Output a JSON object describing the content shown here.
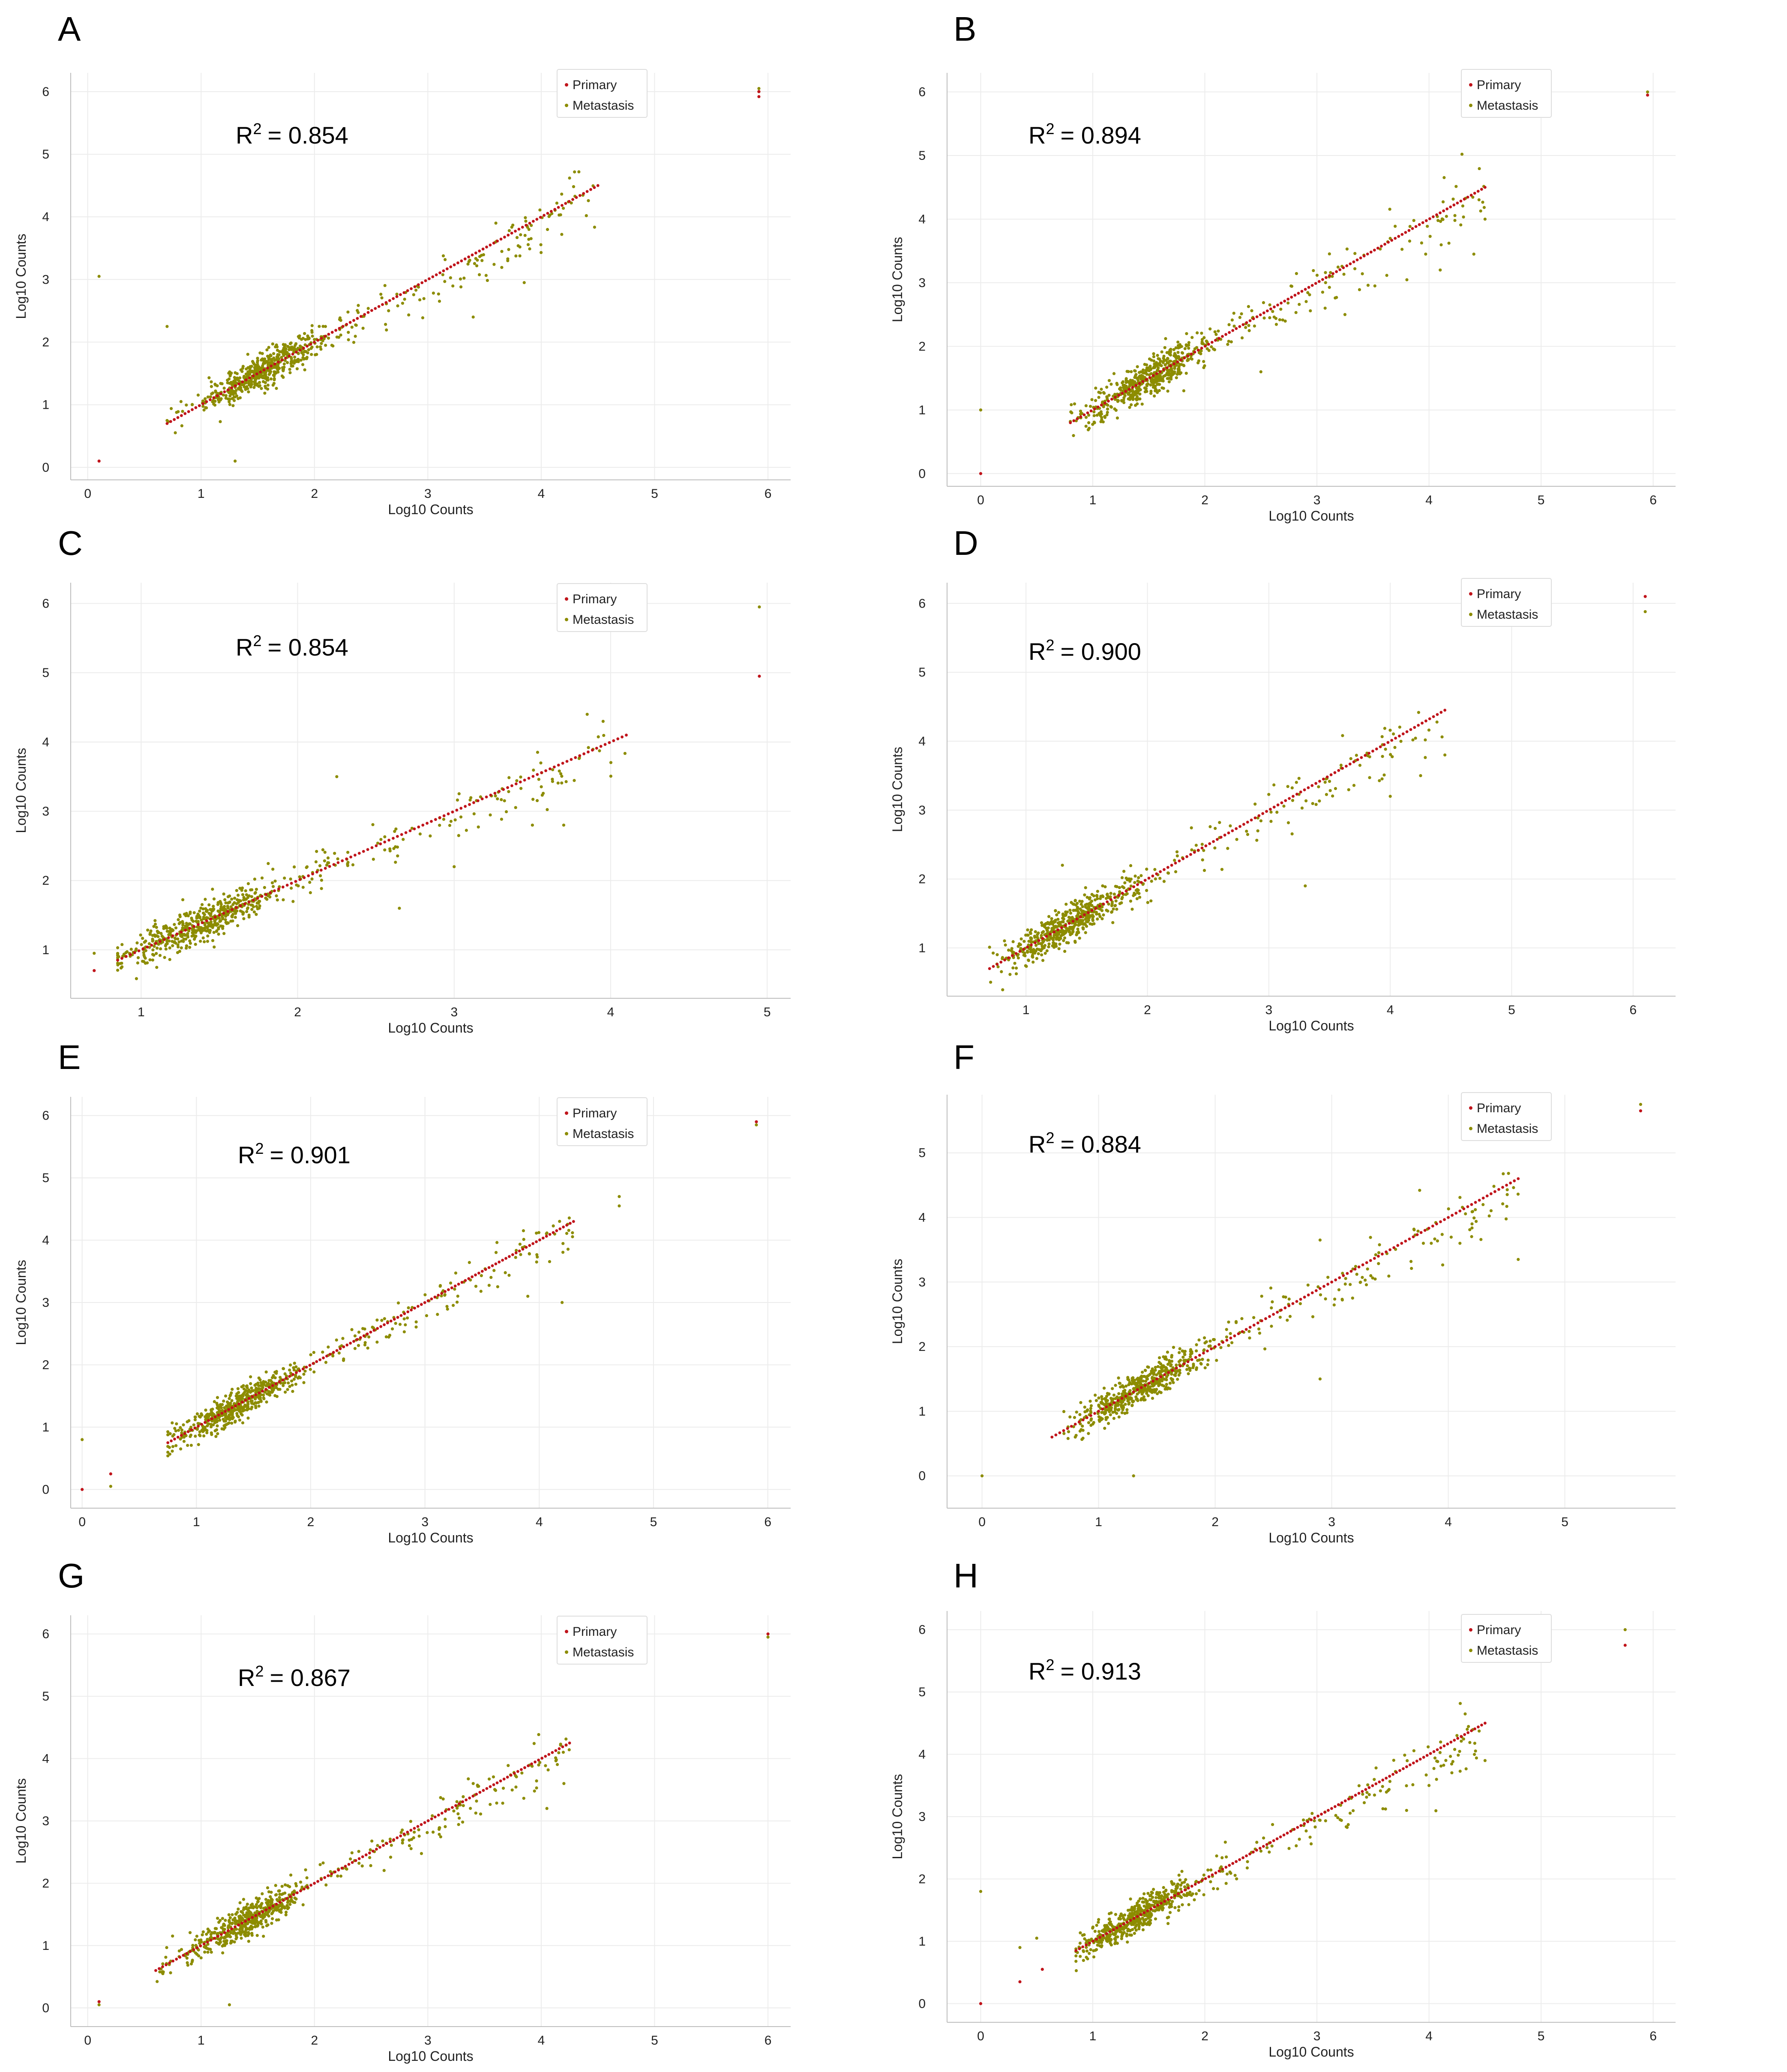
{
  "colors": {
    "primary": "#c0141b",
    "metastasis": "#8c8c00",
    "grid": "#ececec",
    "axis": "#bdbdbd"
  },
  "chart_data": [
    {
      "panel": "A",
      "type": "scatter",
      "xlabel": "Log10 Counts",
      "ylabel": "Log10 Counts",
      "annotation": {
        "text": "R",
        "sup": "2",
        "value": "= 0.854"
      },
      "xlim": [
        -0.15,
        6.2
      ],
      "ylim": [
        -0.2,
        6.3
      ],
      "xticks": [
        0,
        1,
        2,
        3,
        4,
        5,
        6
      ],
      "yticks": [
        0,
        1,
        2,
        3,
        4,
        5,
        6
      ],
      "legend": {
        "position": "top-right",
        "entries": [
          "Primary",
          "Metastasis"
        ]
      },
      "series": [
        {
          "name": "Primary",
          "line_range": [
            0.7,
            4.5
          ],
          "extra_points": [
            [
              0.1,
              0.1
            ],
            [
              5.92,
              5.92
            ],
            [
              5.92,
              6.0
            ]
          ]
        },
        {
          "name": "Metastasis",
          "dense_center": [
            1.55,
            1.55
          ],
          "n_points": 640,
          "x_range": [
            0.7,
            4.5
          ],
          "spread": 0.22,
          "outliers": [
            [
              0.1,
              3.05
            ],
            [
              0.7,
              2.25
            ],
            [
              1.3,
              0.1
            ],
            [
              5.92,
              6.0
            ],
            [
              5.92,
              6.05
            ],
            [
              4.25,
              4.62
            ],
            [
              3.6,
              3.9
            ],
            [
              3.85,
              2.95
            ],
            [
              3.4,
              2.4
            ]
          ]
        }
      ]
    },
    {
      "panel": "B",
      "type": "scatter",
      "xlabel": "Log10 Counts",
      "ylabel": "Log10 Counts",
      "annotation": {
        "text": "R",
        "sup": "2",
        "value": "= 0.894"
      },
      "xlim": [
        -0.3,
        6.2
      ],
      "ylim": [
        -0.2,
        6.3
      ],
      "xticks": [
        0,
        1,
        2,
        3,
        4,
        5,
        6
      ],
      "yticks": [
        0,
        1,
        2,
        3,
        4,
        5,
        6
      ],
      "legend": {
        "position": "top-right",
        "entries": [
          "Primary",
          "Metastasis"
        ]
      },
      "series": [
        {
          "name": "Primary",
          "line_range": [
            0.8,
            4.5
          ],
          "extra_points": [
            [
              0.0,
              0.0
            ],
            [
              5.95,
              5.95
            ]
          ]
        },
        {
          "name": "Metastasis",
          "dense_center": [
            1.5,
            1.45
          ],
          "n_points": 640,
          "x_range": [
            0.8,
            4.5
          ],
          "spread": 0.24,
          "outliers": [
            [
              0.0,
              1.0
            ],
            [
              5.95,
              6.0
            ],
            [
              4.4,
              3.45
            ],
            [
              4.5,
              4.0
            ],
            [
              4.1,
              3.2
            ],
            [
              3.25,
              2.5
            ],
            [
              2.5,
              1.6
            ]
          ]
        }
      ]
    },
    {
      "panel": "C",
      "type": "scatter",
      "xlabel": "Log10 Counts",
      "ylabel": "Log10 Counts",
      "annotation": {
        "text": "R",
        "sup": "2",
        "value": "= 0.854"
      },
      "xlim": [
        0.55,
        5.15
      ],
      "ylim": [
        0.3,
        6.3
      ],
      "xticks": [
        1,
        2,
        3,
        4,
        5
      ],
      "yticks": [
        1,
        2,
        3,
        4,
        5,
        6
      ],
      "legend": {
        "position": "top-right",
        "entries": [
          "Primary",
          "Metastasis"
        ]
      },
      "series": [
        {
          "name": "Primary",
          "line_range": [
            0.85,
            4.1
          ],
          "extra_points": [
            [
              0.7,
              0.7
            ],
            [
              4.95,
              4.95
            ]
          ]
        },
        {
          "name": "Metastasis",
          "dense_center": [
            1.4,
            1.45
          ],
          "n_points": 640,
          "x_range": [
            0.85,
            4.1
          ],
          "spread": 0.22,
          "outliers": [
            [
              0.7,
              0.95
            ],
            [
              4.95,
              5.95
            ],
            [
              3.5,
              2.8
            ],
            [
              3.7,
              2.8
            ],
            [
              2.65,
              1.6
            ],
            [
              2.25,
              3.5
            ],
            [
              3.85,
              4.4
            ],
            [
              3.0,
              2.2
            ]
          ]
        }
      ]
    },
    {
      "panel": "D",
      "type": "scatter",
      "xlabel": "Log10 Counts",
      "ylabel": "Log10 Counts",
      "annotation": {
        "text": "R",
        "sup": "2",
        "value": "= 0.900"
      },
      "xlim": [
        0.35,
        6.35
      ],
      "ylim": [
        0.3,
        6.3
      ],
      "xticks": [
        1,
        2,
        3,
        4,
        5,
        6
      ],
      "yticks": [
        1,
        2,
        3,
        4,
        5,
        6
      ],
      "legend": {
        "position": "top-right",
        "entries": [
          "Primary",
          "Metastasis"
        ]
      },
      "series": [
        {
          "name": "Primary",
          "line_range": [
            0.7,
            4.45
          ],
          "extra_points": [
            [
              6.1,
              6.1
            ]
          ]
        },
        {
          "name": "Metastasis",
          "dense_center": [
            1.35,
            1.35
          ],
          "n_points": 640,
          "x_range": [
            0.7,
            4.45
          ],
          "spread": 0.24,
          "outliers": [
            [
              6.1,
              5.88
            ],
            [
              4.45,
              3.8
            ],
            [
              4.0,
              3.2
            ],
            [
              3.3,
              1.9
            ],
            [
              4.25,
              3.5
            ],
            [
              1.3,
              2.2
            ]
          ]
        }
      ]
    },
    {
      "panel": "E",
      "type": "scatter",
      "xlabel": "Log10 Counts",
      "ylabel": "Log10 Counts",
      "annotation": {
        "text": "R",
        "sup": "2",
        "value": "= 0.901"
      },
      "xlim": [
        -0.1,
        6.2
      ],
      "ylim": [
        -0.3,
        6.3
      ],
      "xticks": [
        0,
        1,
        2,
        3,
        4,
        5,
        6
      ],
      "yticks": [
        0,
        1,
        2,
        3,
        4,
        5,
        6
      ],
      "legend": {
        "position": "top-right",
        "entries": [
          "Primary",
          "Metastasis"
        ]
      },
      "series": [
        {
          "name": "Primary",
          "line_range": [
            0.75,
            4.3
          ],
          "extra_points": [
            [
              0.0,
              0.0
            ],
            [
              0.25,
              0.25
            ],
            [
              5.9,
              5.9
            ]
          ]
        },
        {
          "name": "Metastasis",
          "dense_center": [
            1.35,
            1.4
          ],
          "n_points": 640,
          "x_range": [
            0.75,
            4.3
          ],
          "spread": 0.2,
          "outliers": [
            [
              0.0,
              0.8
            ],
            [
              0.25,
              0.05
            ],
            [
              5.9,
              5.85
            ],
            [
              4.7,
              4.7
            ],
            [
              4.7,
              4.55
            ],
            [
              4.2,
              3.0
            ],
            [
              3.9,
              3.1
            ]
          ]
        }
      ]
    },
    {
      "panel": "F",
      "type": "scatter",
      "xlabel": "Log10 Counts",
      "ylabel": "Log10 Counts",
      "annotation": {
        "text": "R",
        "sup": "2",
        "value": "= 0.884"
      },
      "xlim": [
        -0.3,
        5.95
      ],
      "ylim": [
        -0.5,
        5.9
      ],
      "xticks": [
        0,
        1,
        2,
        3,
        4,
        5
      ],
      "yticks": [
        0,
        1,
        2,
        3,
        4,
        5
      ],
      "legend": {
        "position": "top-right",
        "entries": [
          "Primary",
          "Metastasis"
        ]
      },
      "series": [
        {
          "name": "Primary",
          "line_range": [
            0.6,
            4.6
          ],
          "extra_points": [
            [
              5.65,
              5.65
            ]
          ]
        },
        {
          "name": "Metastasis",
          "dense_center": [
            1.35,
            1.35
          ],
          "n_points": 640,
          "x_range": [
            0.7,
            4.6
          ],
          "spread": 0.23,
          "outliers": [
            [
              0.0,
              0.0
            ],
            [
              5.65,
              5.75
            ],
            [
              4.6,
              3.35
            ],
            [
              4.1,
              3.6
            ],
            [
              2.9,
              3.65
            ],
            [
              2.9,
              1.5
            ],
            [
              1.3,
              0.0
            ],
            [
              0.8,
              0.6
            ]
          ]
        }
      ]
    },
    {
      "panel": "G",
      "type": "scatter",
      "xlabel": "Log10 Counts",
      "ylabel": "Log10 Counts",
      "annotation": {
        "text": "R",
        "sup": "2",
        "value": "= 0.867"
      },
      "xlim": [
        -0.15,
        6.2
      ],
      "ylim": [
        -0.3,
        6.3
      ],
      "xticks": [
        0,
        1,
        2,
        3,
        4,
        5,
        6
      ],
      "yticks": [
        0,
        1,
        2,
        3,
        4,
        5,
        6
      ],
      "legend": {
        "position": "top-right",
        "entries": [
          "Primary",
          "Metastasis"
        ]
      },
      "series": [
        {
          "name": "Primary",
          "line_range": [
            0.6,
            4.25
          ],
          "extra_points": [
            [
              0.1,
              0.1
            ],
            [
              6.0,
              6.0
            ]
          ]
        },
        {
          "name": "Metastasis",
          "dense_center": [
            1.4,
            1.45
          ],
          "n_points": 640,
          "x_range": [
            0.6,
            4.25
          ],
          "spread": 0.22,
          "outliers": [
            [
              0.1,
              0.05
            ],
            [
              6.0,
              5.95
            ],
            [
              4.2,
              3.6
            ],
            [
              4.05,
              3.2
            ],
            [
              3.4,
              3.6
            ],
            [
              1.25,
              0.05
            ]
          ]
        }
      ]
    },
    {
      "panel": "H",
      "type": "scatter",
      "xlabel": "Log10 Counts",
      "ylabel": "Log10 Counts",
      "annotation": {
        "text": "R",
        "sup": "2",
        "value": "= 0.913"
      },
      "xlim": [
        -0.3,
        6.2
      ],
      "ylim": [
        -0.3,
        6.3
      ],
      "xticks": [
        0,
        1,
        2,
        3,
        4,
        5,
        6
      ],
      "yticks": [
        0,
        1,
        2,
        3,
        4,
        5,
        6
      ],
      "legend": {
        "position": "top-right",
        "entries": [
          "Primary",
          "Metastasis"
        ]
      },
      "series": [
        {
          "name": "Primary",
          "line_range": [
            0.85,
            4.5
          ],
          "extra_points": [
            [
              0.0,
              0.0
            ],
            [
              0.35,
              0.35
            ],
            [
              0.55,
              0.55
            ],
            [
              5.75,
              5.75
            ]
          ]
        },
        {
          "name": "Metastasis",
          "dense_center": [
            1.4,
            1.45
          ],
          "n_points": 640,
          "x_range": [
            0.85,
            4.5
          ],
          "spread": 0.22,
          "outliers": [
            [
              0.0,
              1.8
            ],
            [
              5.75,
              6.0
            ],
            [
              4.5,
              3.9
            ],
            [
              4.0,
              3.5
            ],
            [
              3.8,
              3.1
            ],
            [
              0.35,
              0.9
            ],
            [
              0.5,
              1.05
            ]
          ]
        }
      ]
    }
  ]
}
